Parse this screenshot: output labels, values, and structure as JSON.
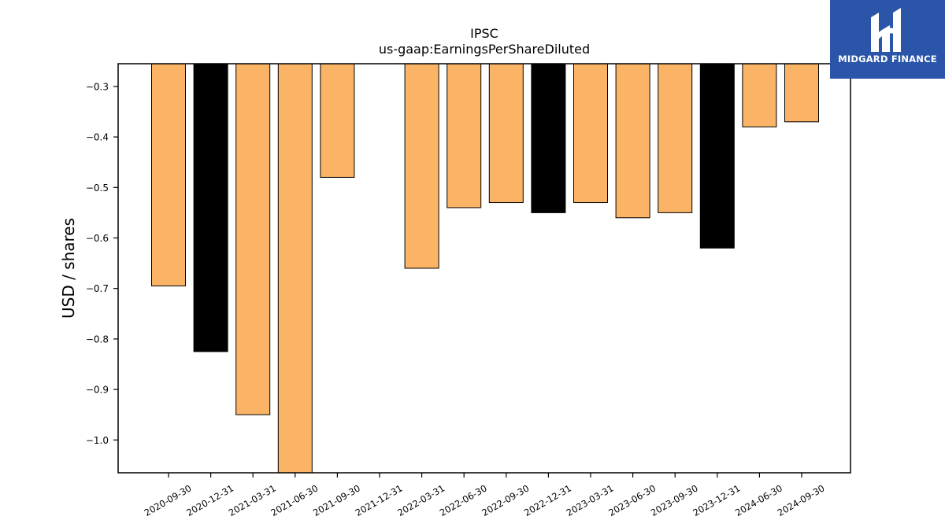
{
  "chart_data": {
    "type": "bar",
    "title": "IPSC",
    "subtitle": "us-gaap:EarningsPerShareDiluted",
    "ylabel": "USD / shares",
    "xlabel": "",
    "ylim": [
      -1.065,
      -0.255
    ],
    "yticks": [
      -0.3,
      -0.4,
      -0.5,
      -0.6,
      -0.7,
      -0.8,
      -0.9,
      -1.0
    ],
    "ytick_labels": [
      "−0.3",
      "−0.4",
      "−0.5",
      "−0.6",
      "−0.7",
      "−0.8",
      "−0.9",
      "−1.0"
    ],
    "categories": [
      "2020-09-30",
      "2020-12-31",
      "2021-03-31",
      "2021-06-30",
      "2021-09-30",
      "2021-12-31",
      "2022-03-31",
      "2022-06-30",
      "2022-09-30",
      "2022-12-31",
      "2023-03-31",
      "2023-06-30",
      "2023-09-30",
      "2023-12-31",
      "2024-06-30",
      "2024-09-30"
    ],
    "values": [
      -0.695,
      -0.825,
      -0.95,
      -1.07,
      -0.48,
      null,
      -0.66,
      -0.54,
      -0.53,
      -0.55,
      -0.53,
      -0.56,
      -0.55,
      -0.62,
      -0.38,
      -0.37
    ],
    "bar_colors": [
      "#fbb466",
      "#000000",
      "#fbb466",
      "#fbb466",
      "#fbb466",
      "#fbb466",
      "#fbb466",
      "#fbb466",
      "#fbb466",
      "#000000",
      "#fbb466",
      "#fbb466",
      "#fbb466",
      "#000000",
      "#fbb466",
      "#fbb466"
    ],
    "grid": false,
    "legend": "none"
  },
  "logo": {
    "text": "MIDGARD FINANCE",
    "background": "#2a55a8"
  }
}
